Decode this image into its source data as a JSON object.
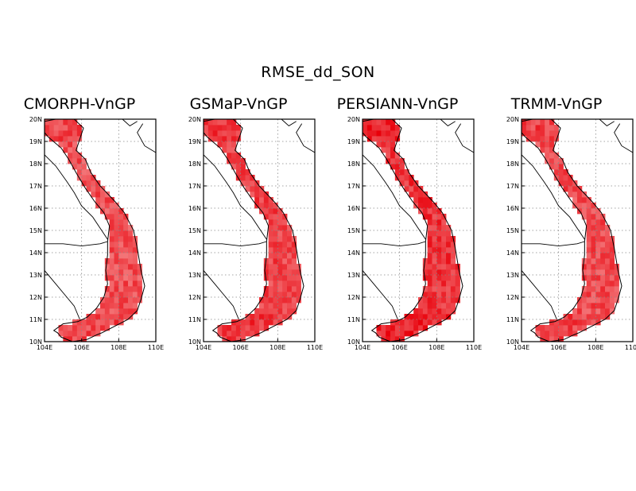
{
  "figure_title": "RMSE_dd_SON",
  "lat_labels": [
    "10N",
    "11N",
    "12N",
    "13N",
    "14N",
    "15N",
    "16N",
    "17N",
    "18N",
    "19N",
    "20N"
  ],
  "lon_labels": [
    "104E",
    "106E",
    "108E",
    "110E"
  ],
  "panels": [
    {
      "title": "CMORPH-VnGP",
      "intensity": 0.55
    },
    {
      "title": "GSMaP-VnGP",
      "intensity": 0.7
    },
    {
      "title": "PERSIANN-VnGP",
      "intensity": 0.85
    },
    {
      "title": "TRMM-VnGP",
      "intensity": 0.6
    }
  ],
  "colors": {
    "field_light": "#f8a8a8",
    "field_dark": "#e8000a",
    "coast": "#000000",
    "grid": "#888888"
  }
}
